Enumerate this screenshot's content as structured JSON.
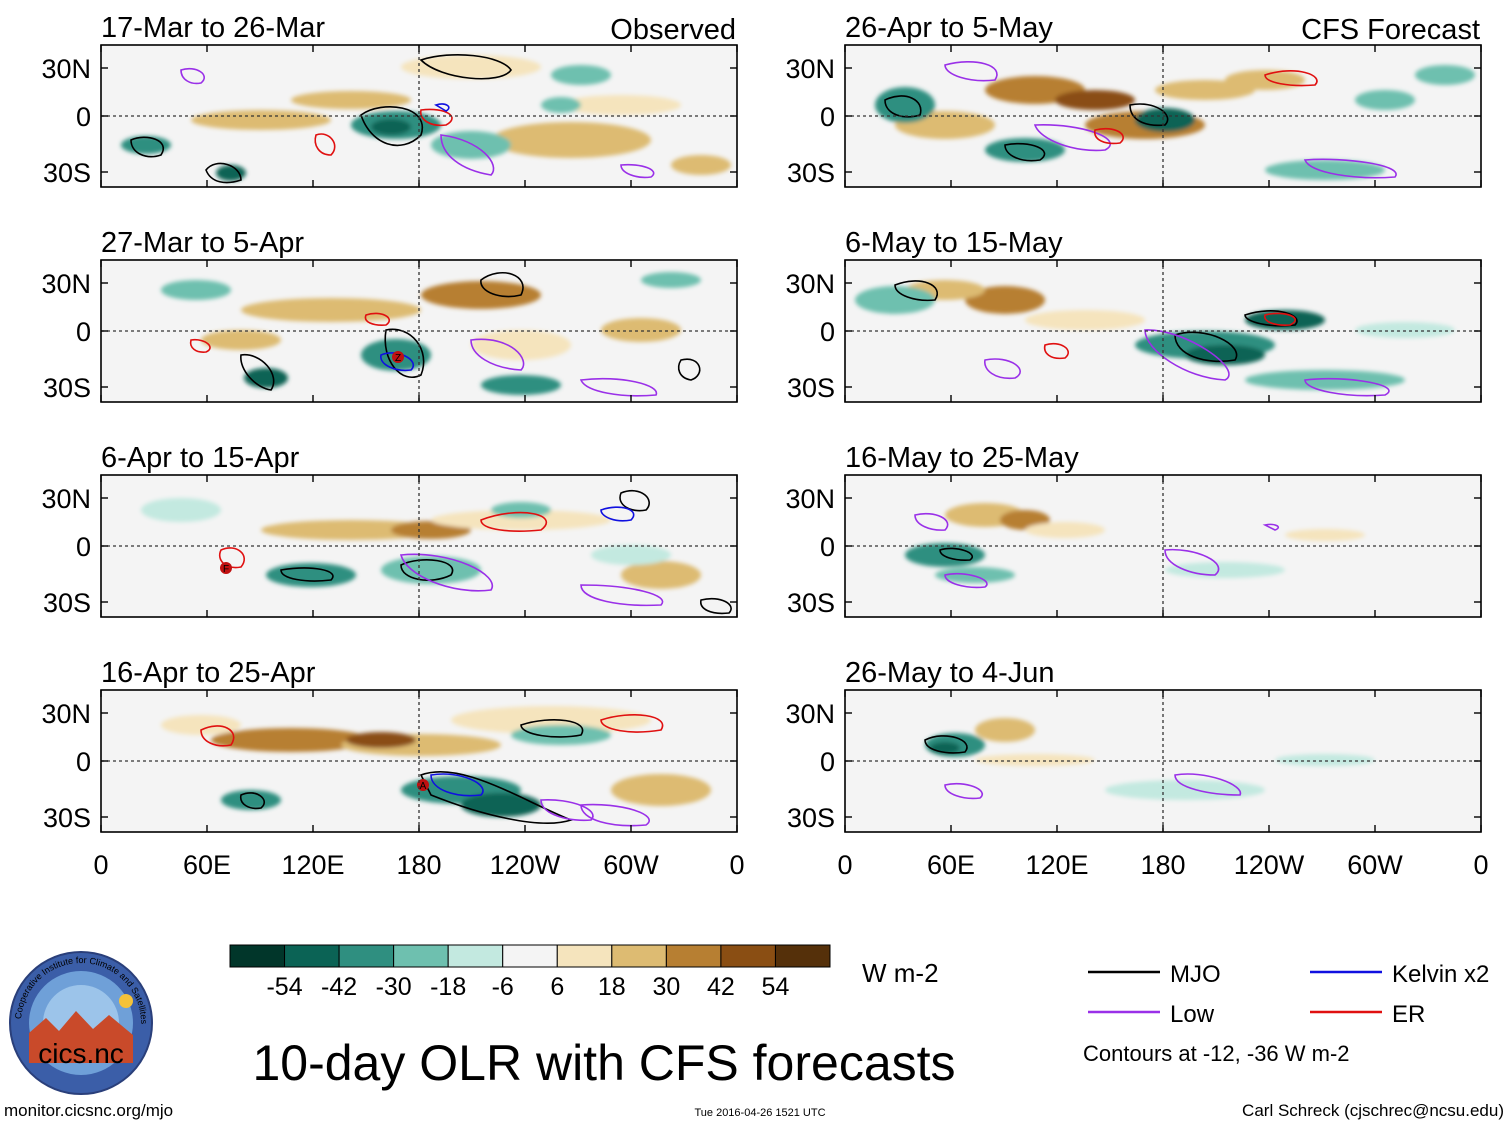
{
  "title": "10-day OLR with CFS forecasts",
  "column_labels": {
    "left": "Observed",
    "right": "CFS Forecast"
  },
  "panels_observed": [
    {
      "label": "17-Mar to 26-Mar"
    },
    {
      "label": "27-Mar to 5-Apr"
    },
    {
      "label": "6-Apr to 15-Apr"
    },
    {
      "label": "16-Apr to 25-Apr"
    }
  ],
  "panels_forecast": [
    {
      "label": "26-Apr to 5-May"
    },
    {
      "label": "6-May to 15-May"
    },
    {
      "label": "16-May to 25-May"
    },
    {
      "label": "26-May to 4-Jun"
    }
  ],
  "lat_ticks": [
    "30N",
    "0",
    "30S"
  ],
  "lon_ticks": [
    "0",
    "60E",
    "120E",
    "180",
    "120W",
    "60W",
    "0"
  ],
  "colorbar": {
    "unit": "W m-2",
    "tick_labels": [
      "-54",
      "-42",
      "-30",
      "-18",
      "-6",
      "6",
      "18",
      "30",
      "42",
      "54"
    ],
    "colors": [
      "#01362a",
      "#0b6355",
      "#2f8f80",
      "#6ec0af",
      "#c3e9e0",
      "#f4f4f4",
      "#f5e4bd",
      "#ddbb72",
      "#b77f32",
      "#8a4e13",
      "#55300a"
    ]
  },
  "legend": {
    "items": [
      {
        "label": "MJO",
        "color": "#000000"
      },
      {
        "label": "Kelvin x2",
        "color": "#1010e0"
      },
      {
        "label": "Low",
        "color": "#9a30e8"
      },
      {
        "label": "ER",
        "color": "#e01010"
      }
    ],
    "note": "Contours at -12, -36 W m-2"
  },
  "logo": {
    "text": "cics.nc",
    "ring_text": "Cooperative Institute for Climate and Satellites"
  },
  "footer": {
    "url": "monitor.cicsnc.org/mjo",
    "timestamp": "Tue 2016-04-26 1521 UTC",
    "author": "Carl Schreck (cjschrec@ncsu.edu)"
  },
  "storm_markers": [
    "Z",
    "F",
    "A"
  ]
}
